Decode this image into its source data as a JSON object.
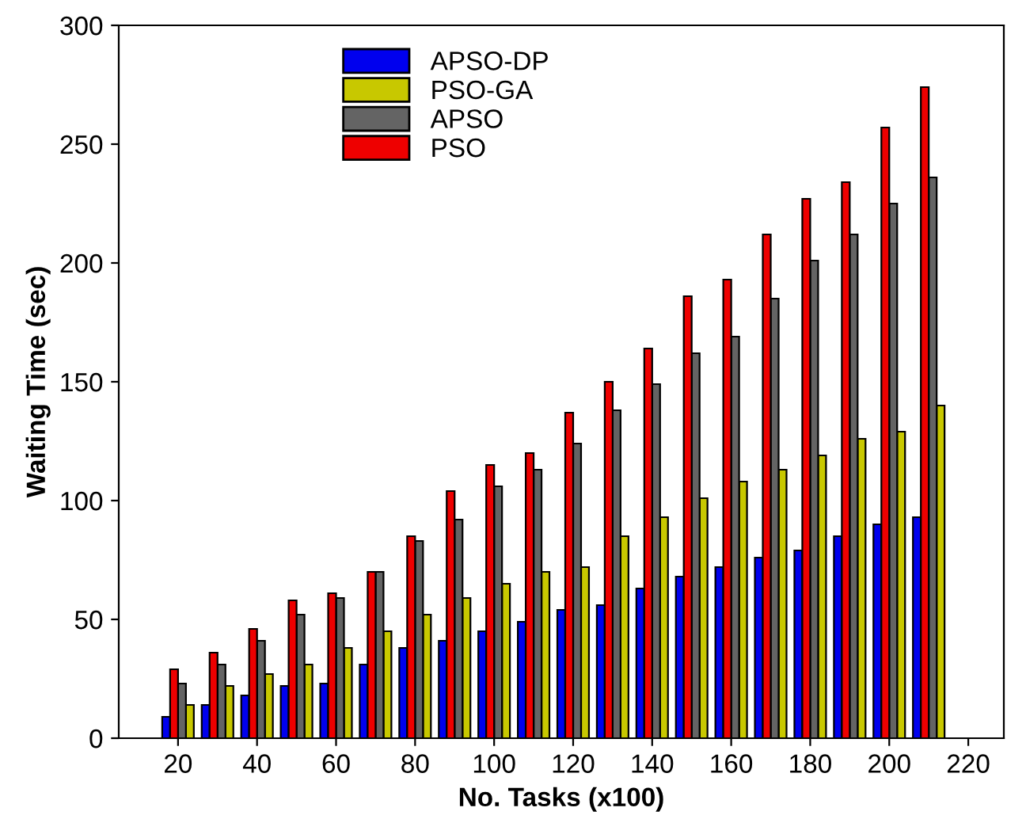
{
  "chart_data": {
    "type": "bar",
    "xlabel": "No. Tasks (x100)",
    "ylabel": "Waiting Time (sec)",
    "x": [
      20,
      30,
      40,
      50,
      60,
      70,
      80,
      90,
      100,
      110,
      120,
      130,
      140,
      150,
      160,
      170,
      180,
      190,
      200,
      210
    ],
    "series": [
      {
        "name": "APSO-DP",
        "color": "#0000ee",
        "values": [
          9,
          14,
          18,
          22,
          23,
          31,
          38,
          41,
          45,
          49,
          54,
          56,
          63,
          68,
          72,
          76,
          79,
          85,
          90,
          93
        ]
      },
      {
        "name": "PSO-GA",
        "color": "#c8c800",
        "values": [
          14,
          22,
          27,
          31,
          38,
          45,
          52,
          59,
          65,
          70,
          72,
          85,
          93,
          101,
          108,
          113,
          119,
          126,
          129,
          140
        ]
      },
      {
        "name": "APSO",
        "color": "#646464",
        "values": [
          23,
          31,
          41,
          52,
          59,
          70,
          83,
          92,
          106,
          113,
          124,
          138,
          149,
          162,
          169,
          185,
          201,
          212,
          225,
          236
        ]
      },
      {
        "name": "PSO",
        "color": "#ee0000",
        "values": [
          29,
          36,
          46,
          58,
          61,
          70,
          85,
          104,
          115,
          120,
          137,
          150,
          164,
          186,
          193,
          212,
          227,
          234,
          257,
          274
        ]
      }
    ],
    "xlim": [
      5,
      229
    ],
    "xticks": [
      20,
      40,
      60,
      80,
      100,
      120,
      140,
      160,
      180,
      200,
      220
    ],
    "ylim": [
      0,
      300
    ],
    "yticks": [
      0,
      50,
      100,
      150,
      200,
      250,
      300
    ],
    "grid": false,
    "legend": "top"
  }
}
